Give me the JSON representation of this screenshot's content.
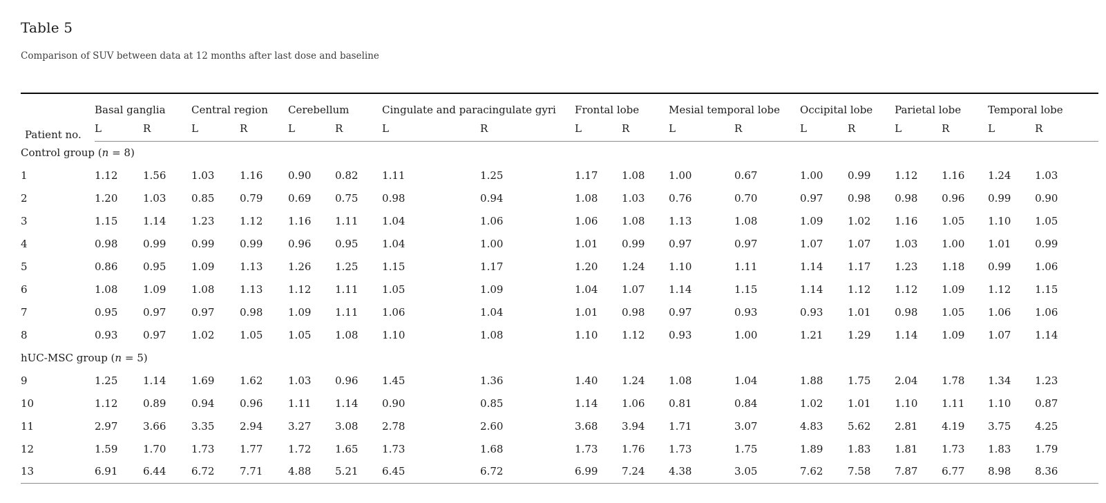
{
  "page": {
    "title": "Table 5",
    "subtitle": "Comparison of SUV between data at 12 months after last dose and baseline"
  },
  "table": {
    "patient_col_header": "Patient no.",
    "hemisphere_left": "L",
    "hemisphere_right": "R",
    "regions": [
      "Basal ganglia",
      "Central region",
      "Cerebellum",
      "Cingulate and paracingulate gyri",
      "Frontal lobe",
      "Mesial temporal lobe",
      "Occipital lobe",
      "Parietal lobe",
      "Temporal lobe"
    ],
    "groups": [
      {
        "label": {
          "prefix": "Control group (",
          "italic": "n",
          "suffix": " = 8)"
        },
        "rows": [
          {
            "patient": "1",
            "values": [
              "1.12",
              "1.56",
              "1.03",
              "1.16",
              "0.90",
              "0.82",
              "1.11",
              "1.25",
              "1.17",
              "1.08",
              "1.00",
              "0.67",
              "1.00",
              "0.99",
              "1.12",
              "1.16",
              "1.24",
              "1.03"
            ]
          },
          {
            "patient": "2",
            "values": [
              "1.20",
              "1.03",
              "0.85",
              "0.79",
              "0.69",
              "0.75",
              "0.98",
              "0.94",
              "1.08",
              "1.03",
              "0.76",
              "0.70",
              "0.97",
              "0.98",
              "0.98",
              "0.96",
              "0.99",
              "0.90"
            ]
          },
          {
            "patient": "3",
            "values": [
              "1.15",
              "1.14",
              "1.23",
              "1.12",
              "1.16",
              "1.11",
              "1.04",
              "1.06",
              "1.06",
              "1.08",
              "1.13",
              "1.08",
              "1.09",
              "1.02",
              "1.16",
              "1.05",
              "1.10",
              "1.05"
            ]
          },
          {
            "patient": "4",
            "values": [
              "0.98",
              "0.99",
              "0.99",
              "0.99",
              "0.96",
              "0.95",
              "1.04",
              "1.00",
              "1.01",
              "0.99",
              "0.97",
              "0.97",
              "1.07",
              "1.07",
              "1.03",
              "1.00",
              "1.01",
              "0.99"
            ]
          },
          {
            "patient": "5",
            "values": [
              "0.86",
              "0.95",
              "1.09",
              "1.13",
              "1.26",
              "1.25",
              "1.15",
              "1.17",
              "1.20",
              "1.24",
              "1.10",
              "1.11",
              "1.14",
              "1.17",
              "1.23",
              "1.18",
              "0.99",
              "1.06"
            ]
          },
          {
            "patient": "6",
            "values": [
              "1.08",
              "1.09",
              "1.08",
              "1.13",
              "1.12",
              "1.11",
              "1.05",
              "1.09",
              "1.04",
              "1.07",
              "1.14",
              "1.15",
              "1.14",
              "1.12",
              "1.12",
              "1.09",
              "1.12",
              "1.15"
            ]
          },
          {
            "patient": "7",
            "values": [
              "0.95",
              "0.97",
              "0.97",
              "0.98",
              "1.09",
              "1.11",
              "1.06",
              "1.04",
              "1.01",
              "0.98",
              "0.97",
              "0.93",
              "0.93",
              "1.01",
              "0.98",
              "1.05",
              "1.06",
              "1.06"
            ]
          },
          {
            "patient": "8",
            "values": [
              "0.93",
              "0.97",
              "1.02",
              "1.05",
              "1.05",
              "1.08",
              "1.10",
              "1.08",
              "1.10",
              "1.12",
              "0.93",
              "1.00",
              "1.21",
              "1.29",
              "1.14",
              "1.09",
              "1.07",
              "1.14"
            ]
          }
        ]
      },
      {
        "label": {
          "prefix": "hUC-MSC group (",
          "italic": "n",
          "suffix": " = 5)"
        },
        "rows": [
          {
            "patient": "9",
            "values": [
              "1.25",
              "1.14",
              "1.69",
              "1.62",
              "1.03",
              "0.96",
              "1.45",
              "1.36",
              "1.40",
              "1.24",
              "1.08",
              "1.04",
              "1.88",
              "1.75",
              "2.04",
              "1.78",
              "1.34",
              "1.23"
            ]
          },
          {
            "patient": "10",
            "values": [
              "1.12",
              "0.89",
              "0.94",
              "0.96",
              "1.11",
              "1.14",
              "0.90",
              "0.85",
              "1.14",
              "1.06",
              "0.81",
              "0.84",
              "1.02",
              "1.01",
              "1.10",
              "1.11",
              "1.10",
              "0.87"
            ]
          },
          {
            "patient": "11",
            "values": [
              "2.97",
              "3.66",
              "3.35",
              "2.94",
              "3.27",
              "3.08",
              "2.78",
              "2.60",
              "3.68",
              "3.94",
              "1.71",
              "3.07",
              "4.83",
              "5.62",
              "2.81",
              "4.19",
              "3.75",
              "4.25"
            ]
          },
          {
            "patient": "12",
            "values": [
              "1.59",
              "1.70",
              "1.73",
              "1.77",
              "1.72",
              "1.65",
              "1.73",
              "1.68",
              "1.73",
              "1.76",
              "1.73",
              "1.75",
              "1.89",
              "1.83",
              "1.81",
              "1.73",
              "1.83",
              "1.79"
            ]
          },
          {
            "patient": "13",
            "values": [
              "6.91",
              "6.44",
              "6.72",
              "7.71",
              "4.88",
              "5.21",
              "6.45",
              "6.72",
              "6.99",
              "7.24",
              "4.38",
              "3.05",
              "7.62",
              "7.58",
              "7.87",
              "6.77",
              "8.98",
              "8.36"
            ]
          }
        ]
      }
    ]
  },
  "colors": {
    "text": "#1c1c1c",
    "caption_text": "#3d3d3d",
    "border_top": "#0a0a0a",
    "border_inner": "#8a8a8a"
  }
}
